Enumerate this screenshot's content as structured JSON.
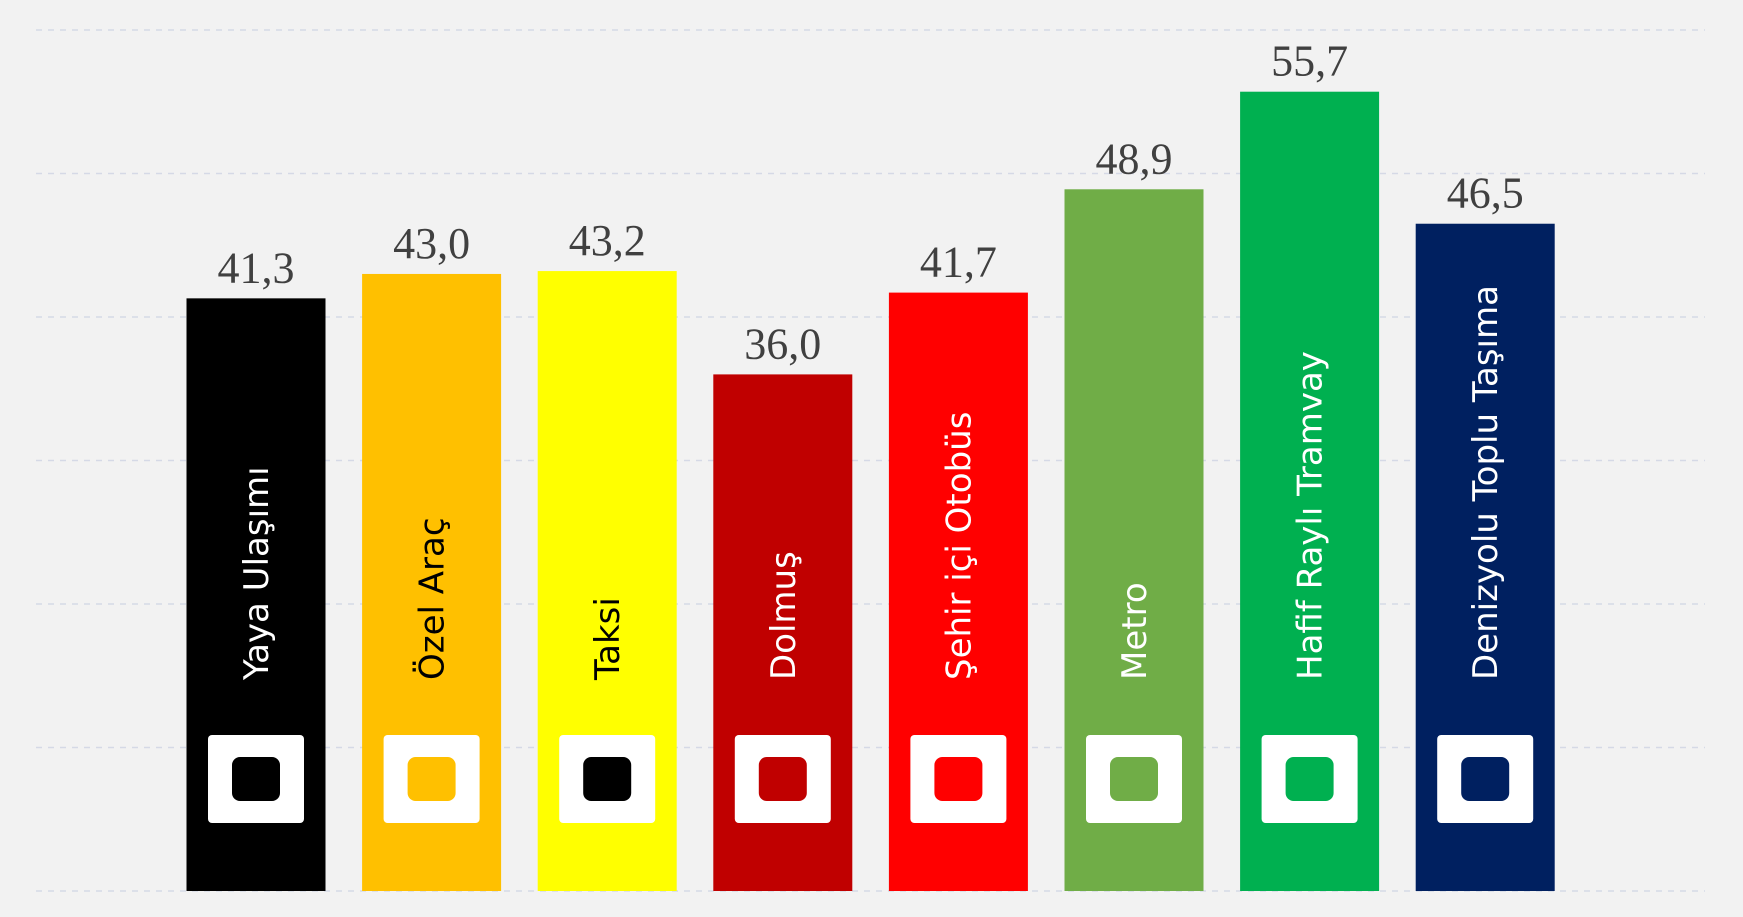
{
  "chart_data": {
    "type": "bar",
    "categories": [
      "Yaya Ulaşımı",
      "Özel Araç",
      "Taksi",
      "Dolmuş",
      "Şehir içi Otobüs",
      "Metro",
      "Hafif Raylı Tramvay",
      "Denizyolu Toplu Taşıma"
    ],
    "values": [
      41.3,
      43.0,
      43.2,
      36.0,
      41.7,
      48.9,
      55.7,
      46.5
    ],
    "value_labels": [
      "41,3",
      "43,0",
      "43,2",
      "36,0",
      "41,7",
      "48,9",
      "55,7",
      "46,5"
    ],
    "colors": [
      "#000000",
      "#ffc000",
      "#ffff00",
      "#c00000",
      "#ff0000",
      "#70ad47",
      "#00b050",
      "#002060"
    ],
    "label_colors": [
      "#ffffff",
      "#000000",
      "#000000",
      "#ffffff",
      "#ffffff",
      "#ffffff",
      "#ffffff",
      "#ffffff"
    ],
    "ylim": [
      0,
      60
    ],
    "yticks": [
      0,
      10,
      20,
      30,
      40,
      50,
      60
    ],
    "grid": true
  }
}
